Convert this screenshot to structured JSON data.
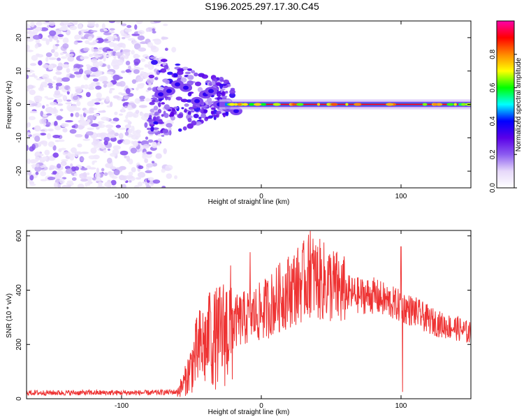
{
  "title": "S196.2025.297.17.30.C45",
  "chart_data": [
    {
      "type": "heatmap",
      "xlabel": "Height of straight line (km)",
      "ylabel": "Frequency (Hz)",
      "xlim": [
        -168,
        150
      ],
      "ylim": [
        -25,
        25
      ],
      "xticks": [
        -100,
        0,
        100
      ],
      "yticks": [
        -20,
        -10,
        0,
        10,
        20
      ],
      "grid": false,
      "colorbar": {
        "label": "Normalized spectral amplitude",
        "range": [
          0,
          1
        ],
        "ticks": [
          0.0,
          0.2,
          0.4,
          0.6,
          0.8
        ],
        "tick_labels": [
          "0.0",
          "0.2",
          "0.4",
          "0.6",
          "0.8"
        ],
        "stops": [
          "#ffffff",
          "#e6d8fa",
          "#8c5cf0",
          "#5a00e8",
          "#0000ff",
          "#00ffff",
          "#00ff00",
          "#ffff00",
          "#ff8800",
          "#ff0000",
          "#ff00aa"
        ]
      },
      "description_regions": [
        {
          "name": "noise",
          "x_range": [
            -168,
            -68
          ],
          "freq_range": [
            -25,
            25
          ],
          "amplitude": "low, scattered (0.05-0.2)"
        },
        {
          "name": "onset",
          "x_range": [
            -78,
            -20
          ],
          "freq_range": [
            -8,
            8
          ],
          "amplitude": "moderate, patchy (0.2-0.5)"
        },
        {
          "name": "signal line",
          "x_range": [
            -30,
            150
          ],
          "freq_center": 0,
          "amplitude": "high (0.8-1.0)"
        }
      ]
    },
    {
      "type": "line",
      "xlabel": "Height of straight line (km)",
      "ylabel": "SNR (10 * v/v)",
      "xlim": [
        -168,
        150
      ],
      "ylim": [
        0,
        620
      ],
      "xticks": [
        -100,
        0,
        100
      ],
      "yticks": [
        0,
        200,
        400,
        600
      ],
      "grid": false,
      "color": "#ee3333",
      "envelope": {
        "x": [
          -168,
          -120,
          -80,
          -60,
          -55,
          -50,
          -45,
          -40,
          -30,
          -20,
          -10,
          0,
          10,
          20,
          30,
          35,
          40,
          50,
          60,
          70,
          80,
          90,
          100,
          110,
          120,
          130,
          140,
          150
        ],
        "y": [
          22,
          22,
          22,
          25,
          60,
          120,
          180,
          200,
          230,
          280,
          300,
          320,
          360,
          400,
          430,
          460,
          440,
          420,
          390,
          380,
          380,
          360,
          340,
          320,
          290,
          270,
          260,
          240
        ]
      },
      "spikes": [
        {
          "x": 35,
          "y": 618
        },
        {
          "x": 100,
          "y": 560
        },
        {
          "x": 101,
          "y": 25
        },
        {
          "x": -37,
          "y": 390
        },
        {
          "x": -8,
          "y": 540
        }
      ]
    }
  ]
}
